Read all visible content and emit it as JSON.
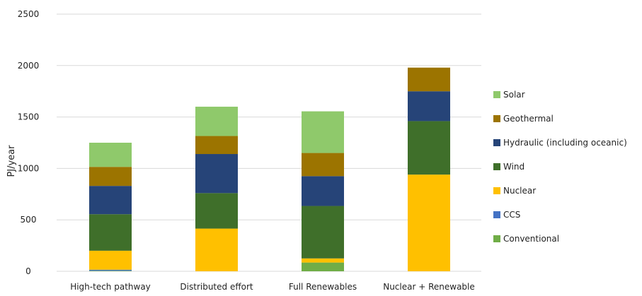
{
  "chart_data": {
    "type": "bar",
    "stacked": true,
    "title": "",
    "xlabel": "",
    "ylabel": "PJ/year",
    "ylim": [
      0,
      2500
    ],
    "yticks": [
      0,
      500,
      1000,
      1500,
      2000,
      2500
    ],
    "grid": true,
    "legend_position": "right",
    "categories": [
      "High-tech pathway",
      "Distributed effort",
      "Full Renewables",
      "Nuclear + Renewable"
    ],
    "series": [
      {
        "name": "Conventional",
        "color": "#70ad47",
        "values": [
          5,
          0,
          85,
          0
        ]
      },
      {
        "name": "CCS",
        "color": "#4472c4",
        "values": [
          10,
          0,
          0,
          0
        ]
      },
      {
        "name": "Nuclear",
        "color": "#ffc000",
        "values": [
          185,
          415,
          40,
          940
        ]
      },
      {
        "name": "Wind",
        "color": "#3f6f2a",
        "values": [
          355,
          345,
          510,
          520
        ]
      },
      {
        "name": "Hydraulic (including oceanic)",
        "color": "#264478",
        "values": [
          275,
          380,
          290,
          290
        ]
      },
      {
        "name": "Geothermal",
        "color": "#9c7400",
        "values": [
          185,
          175,
          225,
          230
        ]
      },
      {
        "name": "Solar",
        "color": "#8fc96b",
        "values": [
          235,
          285,
          405,
          0
        ]
      }
    ]
  }
}
